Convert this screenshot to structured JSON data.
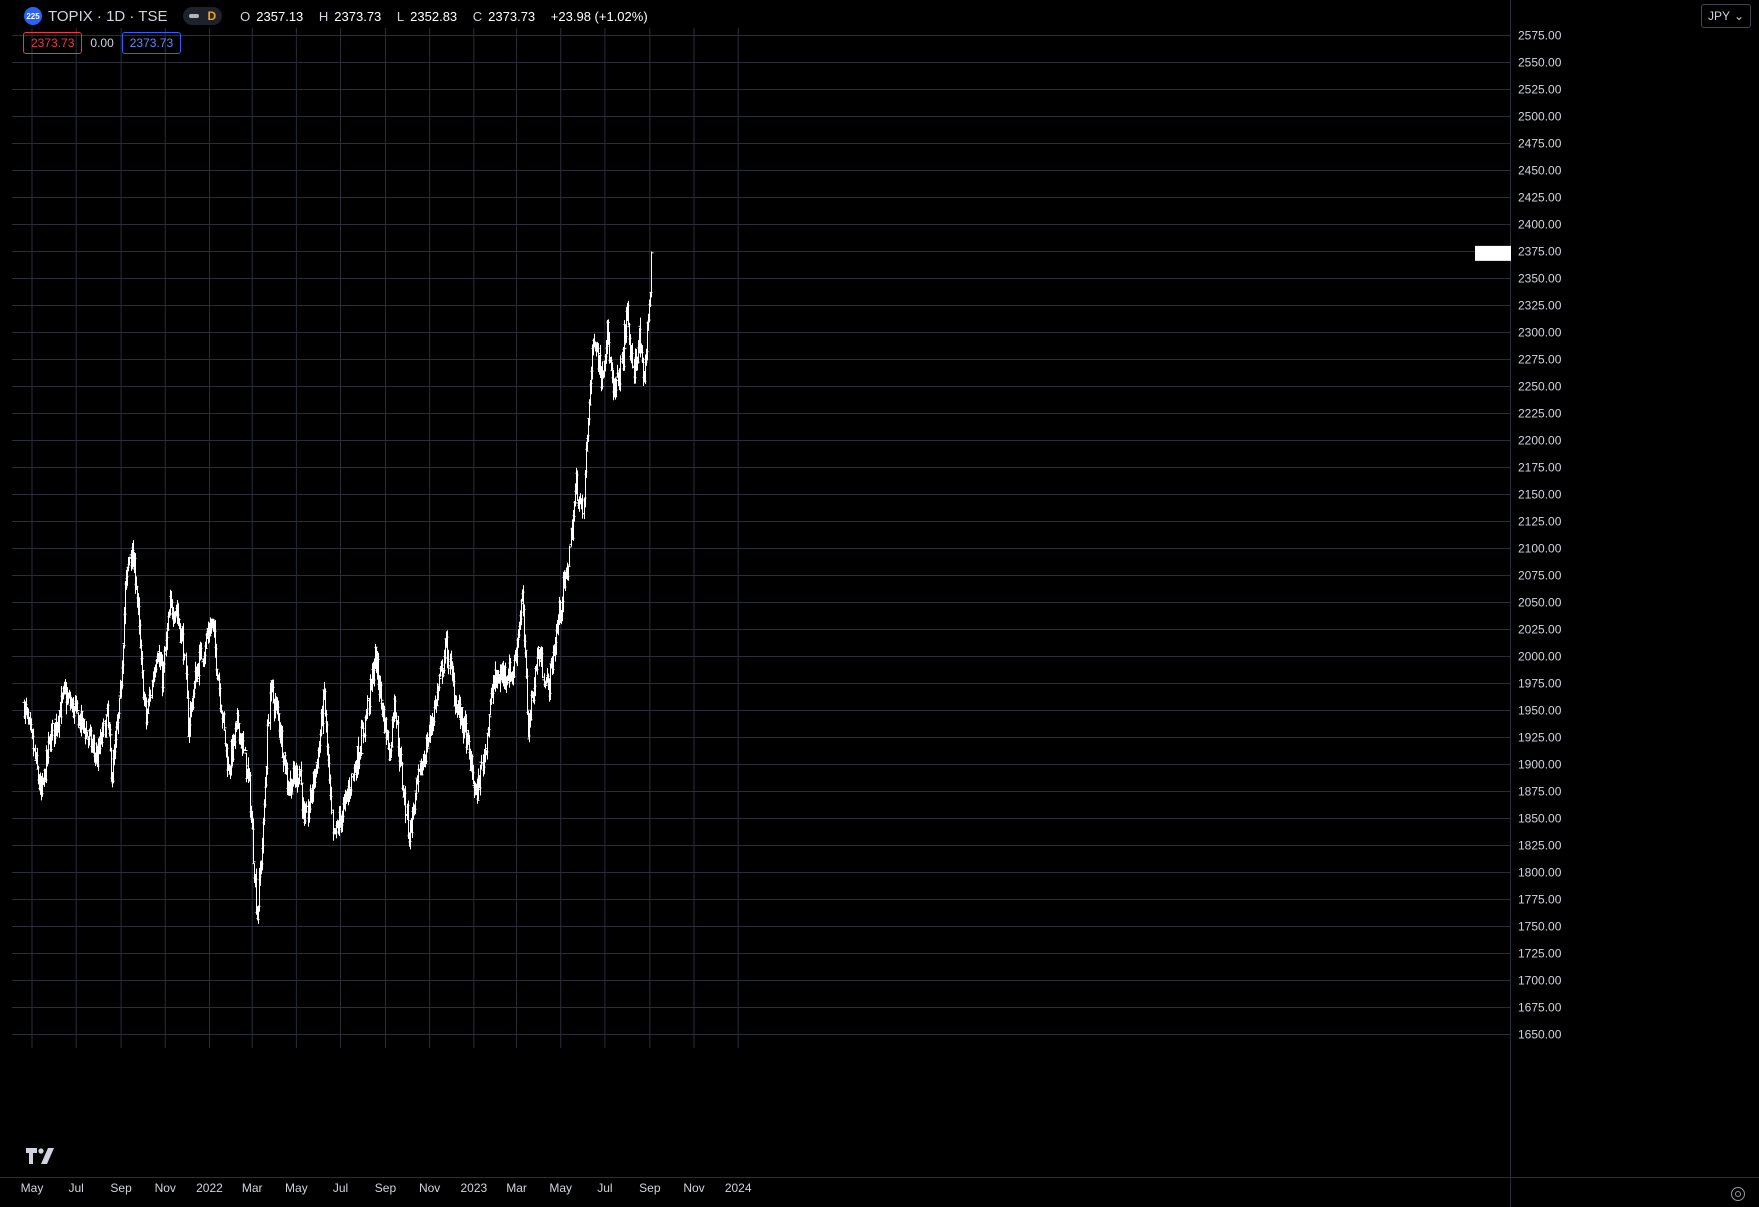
{
  "header": {
    "symbol_badge": "225",
    "title": "TOPIX · 1D · TSE",
    "interval_letter": "D",
    "open_label": "O",
    "open": "2357.13",
    "high_label": "H",
    "high": "2373.73",
    "low_label": "L",
    "low": "2352.83",
    "close_label": "C",
    "close": "2373.73",
    "change": "+23.98 (+1.02%)"
  },
  "price_boxes": {
    "sell": "2373.73",
    "spread": "0.00",
    "buy": "2373.73"
  },
  "currency": "JPY",
  "icons": {
    "logo": "tradingview-logo-icon",
    "settings": "settings-icon",
    "dropdown": "chevron-down-icon"
  },
  "colors": {
    "background": "#000000",
    "grid": "#2a2e39",
    "bars": "#ffffff",
    "axis_text": "#d1d4dc"
  },
  "chart_data": {
    "type": "ohlc",
    "title": "TOPIX · 1D · TSE",
    "grid": true,
    "ylim": [
      1640,
      2590
    ],
    "y_ticks": [
      1650,
      1675,
      1700,
      1725,
      1750,
      1775,
      1800,
      1825,
      1850,
      1875,
      1900,
      1925,
      1950,
      1975,
      2000,
      2025,
      2050,
      2075,
      2100,
      2125,
      2150,
      2175,
      2200,
      2225,
      2250,
      2275,
      2300,
      2325,
      2350,
      2375,
      2400,
      2425,
      2450,
      2475,
      2500,
      2525,
      2550,
      2575
    ],
    "x_ticks": [
      {
        "date": "2021-05-01",
        "label": "May"
      },
      {
        "date": "2021-07-01",
        "label": "Jul"
      },
      {
        "date": "2021-09-01",
        "label": "Sep"
      },
      {
        "date": "2021-11-01",
        "label": "Nov"
      },
      {
        "date": "2022-01-01",
        "label": "2022"
      },
      {
        "date": "2022-03-01",
        "label": "Mar"
      },
      {
        "date": "2022-05-01",
        "label": "May"
      },
      {
        "date": "2022-07-01",
        "label": "Jul"
      },
      {
        "date": "2022-09-01",
        "label": "Sep"
      },
      {
        "date": "2022-11-01",
        "label": "Nov"
      },
      {
        "date": "2023-01-01",
        "label": "2023"
      },
      {
        "date": "2023-03-01",
        "label": "Mar"
      },
      {
        "date": "2023-05-01",
        "label": "May"
      },
      {
        "date": "2023-07-01",
        "label": "Jul"
      },
      {
        "date": "2023-09-01",
        "label": "Sep"
      },
      {
        "date": "2023-11-01",
        "label": "Nov"
      },
      {
        "date": "2024-01-01",
        "label": "2024"
      }
    ],
    "last_price": 2373.73,
    "close_path": [
      {
        "date": "2021-04-20",
        "close": 1955
      },
      {
        "date": "2021-05-05",
        "close": 1905
      },
      {
        "date": "2021-05-13",
        "close": 1870
      },
      {
        "date": "2021-05-25",
        "close": 1920
      },
      {
        "date": "2021-06-14",
        "close": 1965
      },
      {
        "date": "2021-06-28",
        "close": 1950
      },
      {
        "date": "2021-07-15",
        "close": 1930
      },
      {
        "date": "2021-07-30",
        "close": 1905
      },
      {
        "date": "2021-08-12",
        "close": 1945
      },
      {
        "date": "2021-08-20",
        "close": 1890
      },
      {
        "date": "2021-08-31",
        "close": 1960
      },
      {
        "date": "2021-09-07",
        "close": 2060
      },
      {
        "date": "2021-09-14",
        "close": 2100
      },
      {
        "date": "2021-09-22",
        "close": 2070
      },
      {
        "date": "2021-09-29",
        "close": 1990
      },
      {
        "date": "2021-10-06",
        "close": 1940
      },
      {
        "date": "2021-10-20",
        "close": 2010
      },
      {
        "date": "2021-10-28",
        "close": 1980
      },
      {
        "date": "2021-11-08",
        "close": 2045
      },
      {
        "date": "2021-11-16",
        "close": 2045
      },
      {
        "date": "2021-11-26",
        "close": 2010
      },
      {
        "date": "2021-12-02",
        "close": 1935
      },
      {
        "date": "2021-12-14",
        "close": 1985
      },
      {
        "date": "2021-12-28",
        "close": 2020
      },
      {
        "date": "2022-01-05",
        "close": 2030
      },
      {
        "date": "2022-01-12",
        "close": 1990
      },
      {
        "date": "2022-01-27",
        "close": 1895
      },
      {
        "date": "2022-02-10",
        "close": 1940
      },
      {
        "date": "2022-02-24",
        "close": 1880
      },
      {
        "date": "2022-03-08",
        "close": 1760
      },
      {
        "date": "2022-03-16",
        "close": 1840
      },
      {
        "date": "2022-03-25",
        "close": 1970
      },
      {
        "date": "2022-04-05",
        "close": 1945
      },
      {
        "date": "2022-04-19",
        "close": 1880
      },
      {
        "date": "2022-05-06",
        "close": 1895
      },
      {
        "date": "2022-05-12",
        "close": 1840
      },
      {
        "date": "2022-05-31",
        "close": 1910
      },
      {
        "date": "2022-06-08",
        "close": 1965
      },
      {
        "date": "2022-06-20",
        "close": 1830
      },
      {
        "date": "2022-07-06",
        "close": 1860
      },
      {
        "date": "2022-07-19",
        "close": 1895
      },
      {
        "date": "2022-08-03",
        "close": 1935
      },
      {
        "date": "2022-08-17",
        "close": 2000
      },
      {
        "date": "2022-08-30",
        "close": 1940
      },
      {
        "date": "2022-09-07",
        "close": 1910
      },
      {
        "date": "2022-09-13",
        "close": 1965
      },
      {
        "date": "2022-09-20",
        "close": 1910
      },
      {
        "date": "2022-10-03",
        "close": 1835
      },
      {
        "date": "2022-10-14",
        "close": 1880
      },
      {
        "date": "2022-10-28",
        "close": 1920
      },
      {
        "date": "2022-11-10",
        "close": 1960
      },
      {
        "date": "2022-11-24",
        "close": 2010
      },
      {
        "date": "2022-12-06",
        "close": 1960
      },
      {
        "date": "2022-12-20",
        "close": 1930
      },
      {
        "date": "2023-01-04",
        "close": 1870
      },
      {
        "date": "2023-01-16",
        "close": 1915
      },
      {
        "date": "2023-01-27",
        "close": 1975
      },
      {
        "date": "2023-02-10",
        "close": 1985
      },
      {
        "date": "2023-02-24",
        "close": 1985
      },
      {
        "date": "2023-03-09",
        "close": 2055
      },
      {
        "date": "2023-03-17",
        "close": 1935
      },
      {
        "date": "2023-03-31",
        "close": 2005
      },
      {
        "date": "2023-04-13",
        "close": 1970
      },
      {
        "date": "2023-04-28",
        "close": 2040
      },
      {
        "date": "2023-05-10",
        "close": 2080
      },
      {
        "date": "2023-05-22",
        "close": 2160
      },
      {
        "date": "2023-05-31",
        "close": 2130
      },
      {
        "date": "2023-06-09",
        "close": 2240
      },
      {
        "date": "2023-06-16",
        "close": 2300
      },
      {
        "date": "2023-06-26",
        "close": 2260
      },
      {
        "date": "2023-07-04",
        "close": 2300
      },
      {
        "date": "2023-07-12",
        "close": 2240
      },
      {
        "date": "2023-07-24",
        "close": 2270
      },
      {
        "date": "2023-08-01",
        "close": 2320
      },
      {
        "date": "2023-08-08",
        "close": 2260
      },
      {
        "date": "2023-08-17",
        "close": 2295
      },
      {
        "date": "2023-08-22",
        "close": 2250
      },
      {
        "date": "2023-08-28",
        "close": 2300
      },
      {
        "date": "2023-09-04",
        "close": 2373.73
      }
    ]
  }
}
